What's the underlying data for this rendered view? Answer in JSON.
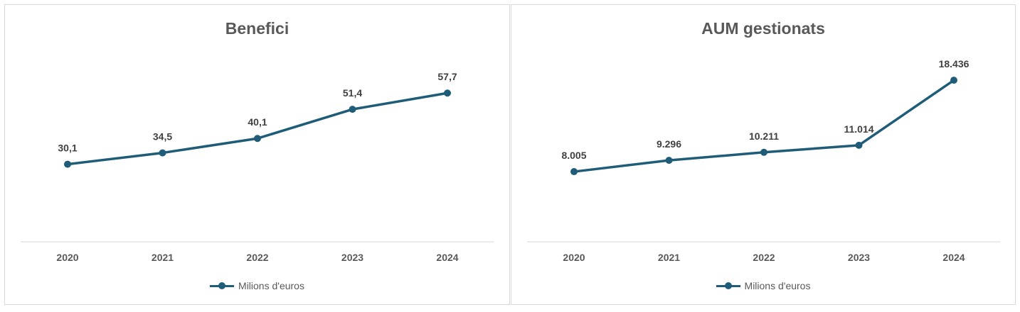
{
  "chart_data": [
    {
      "type": "line",
      "title": "Benefici",
      "categories": [
        "2020",
        "2021",
        "2022",
        "2023",
        "2024"
      ],
      "series": [
        {
          "name": "Milions d'euros",
          "values": [
            30.1,
            34.5,
            40.1,
            51.4,
            57.7
          ],
          "labels": [
            "30,1",
            "34,5",
            "40,1",
            "51,4",
            "57,7"
          ]
        }
      ],
      "ylim": [
        0,
        85
      ],
      "grid": false,
      "legend": "bottom",
      "color": "#1f5c78"
    },
    {
      "type": "line",
      "title": "AUM gestionats",
      "categories": [
        "2020",
        "2021",
        "2022",
        "2023",
        "2024"
      ],
      "series": [
        {
          "name": "Milions d'euros",
          "values": [
            8005,
            9296,
            10211,
            11014,
            18436
          ],
          "labels": [
            "8.005",
            "9.296",
            "10.211",
            "11.014",
            "18.436"
          ]
        }
      ],
      "ylim": [
        0,
        25000
      ],
      "grid": false,
      "legend": "bottom",
      "color": "#1f5c78"
    }
  ]
}
